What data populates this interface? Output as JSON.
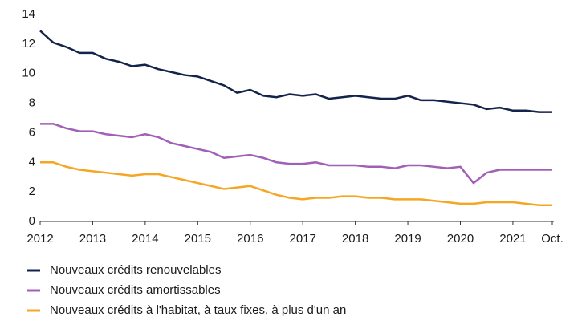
{
  "chart_data": {
    "type": "line",
    "x": [
      2012,
      2012.25,
      2012.5,
      2012.75,
      2013,
      2013.25,
      2013.5,
      2013.75,
      2014,
      2014.25,
      2014.5,
      2014.75,
      2015,
      2015.25,
      2015.5,
      2015.75,
      2016,
      2016.25,
      2016.5,
      2016.75,
      2017,
      2017.25,
      2017.5,
      2017.75,
      2018,
      2018.25,
      2018.5,
      2018.75,
      2019,
      2019.25,
      2019.5,
      2019.75,
      2020,
      2020.25,
      2020.5,
      2020.75,
      2021,
      2021.25,
      2021.5,
      2021.75
    ],
    "series": [
      {
        "name": "Nouveaux crédits renouvelables",
        "color": "#14234b",
        "values": [
          12.9,
          12.1,
          11.8,
          11.4,
          11.4,
          11.0,
          10.8,
          10.5,
          10.6,
          10.3,
          10.1,
          9.9,
          9.8,
          9.5,
          9.2,
          8.7,
          8.9,
          8.5,
          8.4,
          8.6,
          8.5,
          8.6,
          8.3,
          8.4,
          8.5,
          8.4,
          8.3,
          8.3,
          8.5,
          8.2,
          8.2,
          8.1,
          8.0,
          7.9,
          7.6,
          7.7,
          7.5,
          7.5,
          7.4,
          7.4
        ]
      },
      {
        "name": "Nouveaux crédits amortissables",
        "color": "#a060b8",
        "values": [
          6.6,
          6.6,
          6.3,
          6.1,
          6.1,
          5.9,
          5.8,
          5.7,
          5.9,
          5.7,
          5.3,
          5.1,
          4.9,
          4.7,
          4.3,
          4.4,
          4.5,
          4.3,
          4.0,
          3.9,
          3.9,
          4.0,
          3.8,
          3.8,
          3.8,
          3.7,
          3.7,
          3.6,
          3.8,
          3.8,
          3.7,
          3.6,
          3.7,
          2.6,
          3.3,
          3.5,
          3.5,
          3.5,
          3.5,
          3.5
        ]
      },
      {
        "name": "Nouveaux crédits à l'habitat, à taux fixes, à plus d'un an",
        "color": "#f5a623",
        "values": [
          4.0,
          4.0,
          3.7,
          3.5,
          3.4,
          3.3,
          3.2,
          3.1,
          3.2,
          3.2,
          3.0,
          2.8,
          2.6,
          2.4,
          2.2,
          2.3,
          2.4,
          2.1,
          1.8,
          1.6,
          1.5,
          1.6,
          1.6,
          1.7,
          1.7,
          1.6,
          1.6,
          1.5,
          1.5,
          1.5,
          1.4,
          1.3,
          1.2,
          1.2,
          1.3,
          1.3,
          1.3,
          1.2,
          1.1,
          1.1
        ]
      }
    ],
    "xlim": [
      2012,
      2021.75
    ],
    "xticks": [
      2012,
      2013,
      2014,
      2015,
      2016,
      2017,
      2018,
      2019,
      2020,
      2021,
      {
        "value": 2021.75,
        "label": "Oct."
      }
    ],
    "ylim": [
      0,
      14
    ],
    "yticks": [
      0,
      2,
      4,
      6,
      8,
      10,
      12,
      14
    ]
  }
}
